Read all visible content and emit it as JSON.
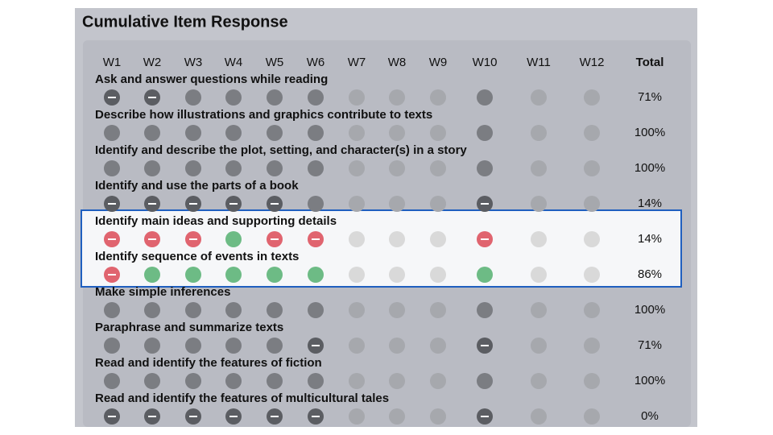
{
  "title": "Cumulative Item Response",
  "columns": [
    "W1",
    "W2",
    "W3",
    "W4",
    "W5",
    "W6",
    "W7",
    "W8",
    "W9",
    "W10",
    "W11",
    "W12"
  ],
  "total_header": "Total",
  "rows": [
    {
      "skill": "Ask and answer questions while reading",
      "total": "71%",
      "highlighted": false,
      "marks": [
        "incorrect",
        "incorrect",
        "correct",
        "correct",
        "correct",
        "correct",
        "none",
        "none",
        "none",
        "correct",
        "none",
        "none"
      ]
    },
    {
      "skill": "Describe how illustrations and graphics contribute to texts",
      "total": "100%",
      "highlighted": false,
      "marks": [
        "correct",
        "correct",
        "correct",
        "correct",
        "correct",
        "correct",
        "none",
        "none",
        "none",
        "correct",
        "none",
        "none"
      ]
    },
    {
      "skill": "Identify and describe the plot, setting, and character(s) in a story",
      "total": "100%",
      "highlighted": false,
      "marks": [
        "correct",
        "correct",
        "correct",
        "correct",
        "correct",
        "correct",
        "none",
        "none",
        "none",
        "correct",
        "none",
        "none"
      ]
    },
    {
      "skill": "Identify and use the parts of a book",
      "total": "14%",
      "highlighted": false,
      "marks": [
        "incorrect",
        "incorrect",
        "incorrect",
        "incorrect",
        "incorrect",
        "correct",
        "none",
        "none",
        "none",
        "incorrect",
        "none",
        "none"
      ]
    },
    {
      "skill": "Identify main ideas and supporting details",
      "total": "14%",
      "highlighted": true,
      "marks": [
        "incorrect",
        "incorrect",
        "incorrect",
        "correct",
        "incorrect",
        "incorrect",
        "none",
        "none",
        "none",
        "incorrect",
        "none",
        "none"
      ]
    },
    {
      "skill": "Identify sequence of events in texts",
      "total": "86%",
      "highlighted": true,
      "marks": [
        "incorrect",
        "correct",
        "correct",
        "correct",
        "correct",
        "correct",
        "none",
        "none",
        "none",
        "correct",
        "none",
        "none"
      ]
    },
    {
      "skill": "Make simple inferences",
      "total": "100%",
      "highlighted": false,
      "marks": [
        "correct",
        "correct",
        "correct",
        "correct",
        "correct",
        "correct",
        "none",
        "none",
        "none",
        "correct",
        "none",
        "none"
      ]
    },
    {
      "skill": "Paraphrase and summarize texts",
      "total": "71%",
      "highlighted": false,
      "marks": [
        "correct",
        "correct",
        "correct",
        "correct",
        "correct",
        "incorrect",
        "none",
        "none",
        "none",
        "incorrect",
        "none",
        "none"
      ]
    },
    {
      "skill": "Read and identify the features of fiction",
      "total": "100%",
      "highlighted": false,
      "marks": [
        "correct",
        "correct",
        "correct",
        "correct",
        "correct",
        "correct",
        "none",
        "none",
        "none",
        "correct",
        "none",
        "none"
      ]
    },
    {
      "skill": "Read and identify the features of multicultural tales",
      "total": "0%",
      "highlighted": false,
      "marks": [
        "incorrect",
        "incorrect",
        "incorrect",
        "incorrect",
        "incorrect",
        "incorrect",
        "none",
        "none",
        "none",
        "incorrect",
        "none",
        "none"
      ]
    }
  ]
}
